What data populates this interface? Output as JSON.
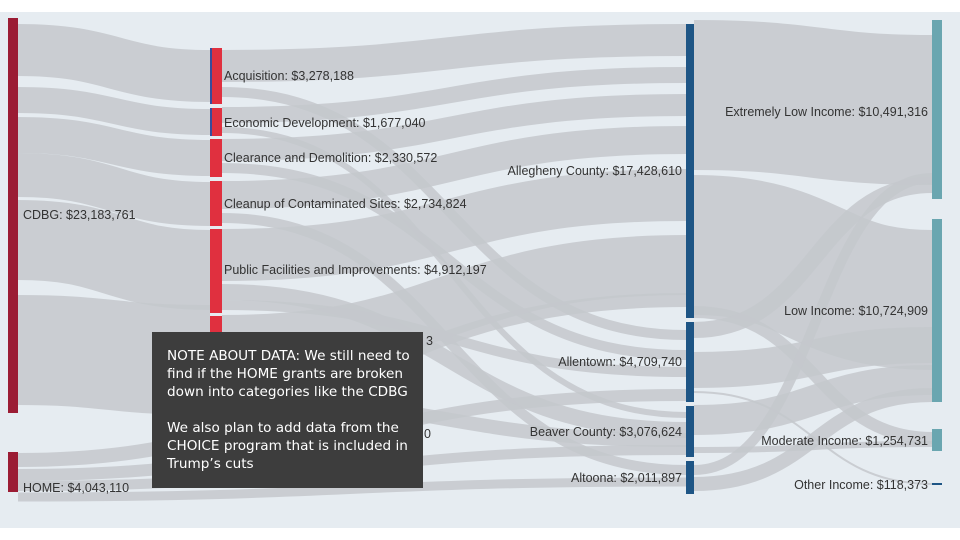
{
  "nodes": {
    "cdbg": "CDBG: $23,183,761",
    "home": "HOME: $4,043,110",
    "acquisition": "Acquisition: $3,278,188",
    "economic_development": "Economic Development: $1,677,040",
    "clearance_demolition": "Clearance and Demolition: $2,330,572",
    "cleanup_sites": "Cleanup of Contaminated Sites: $2,734,824",
    "public_facilities": "Public Facilities and Improvements: $4,912,197",
    "hidden_category_a_tail": "3",
    "hidden_category_b_tail": "0",
    "allegheny": "Allegheny County: $17,428,610",
    "allentown": "Allentown: $4,709,740",
    "beaver": "Beaver County: $3,076,624",
    "altoona": "Altoona: $2,011,897",
    "extremely_low": "Extremely Low Income: $10,491,316",
    "low": "Low Income: $10,724,909",
    "moderate": "Moderate Income: $1,254,731",
    "other": "Other Income: $118,373"
  },
  "note": {
    "paragraph1": "NOTE ABOUT DATA: We still need to find if the HOME grants are broken down into categories like the CDBG",
    "paragraph2": "We also plan to add data from the CHOICE program that is included in Trump’s cuts"
  },
  "colors": {
    "background": "#e6ecf1",
    "program": "#9b1c34",
    "category": "#e0303f",
    "category_blue": "#3a4c9a",
    "region": "#1e5585",
    "income": "#6aa6b0",
    "link": "#c4c8cc"
  }
}
